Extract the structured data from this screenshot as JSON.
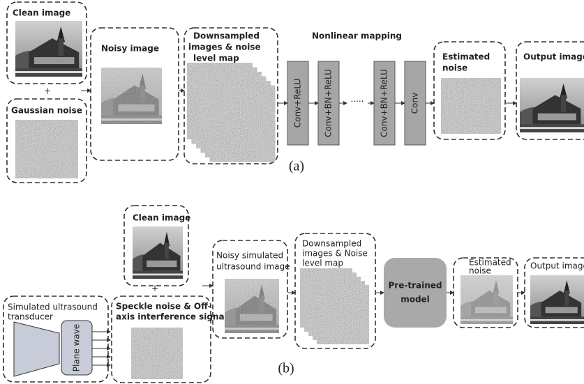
{
  "part_a": {
    "clean_image": "Clean image",
    "plus": "+",
    "gaussian_noise": "Gaussian noise",
    "noisy_image": "Noisy image",
    "downsampled": [
      "Downsampled",
      "images & noise",
      "level map"
    ],
    "mapping_title": "Nonlinear mapping",
    "layers": [
      "Conv+ReLU",
      "Conv+BN+ReLU",
      "Conv+BN+ReLU",
      "Conv"
    ],
    "ellipsis": "·····",
    "estimated_noise": [
      "Estimated",
      "noise"
    ],
    "output_image": "Output image",
    "label": "(a)"
  },
  "part_b": {
    "clean_image": "Clean image",
    "plus": "+",
    "transducer": [
      "Simulated ultrasound",
      "transducer"
    ],
    "plane_wave": "Plane wave",
    "speckle_noise": [
      "Speckle noise & Off-",
      "axis interference signals"
    ],
    "noisy_simulated": [
      "Noisy simulated",
      "ultrasound  image"
    ],
    "downsampled": [
      "Downsampled",
      "images & Noise",
      "level map"
    ],
    "model": [
      "Pre-trained",
      "model"
    ],
    "estimated_noise": [
      "Estimated",
      "noise"
    ],
    "output_image": "Output image",
    "label": "(b)"
  }
}
